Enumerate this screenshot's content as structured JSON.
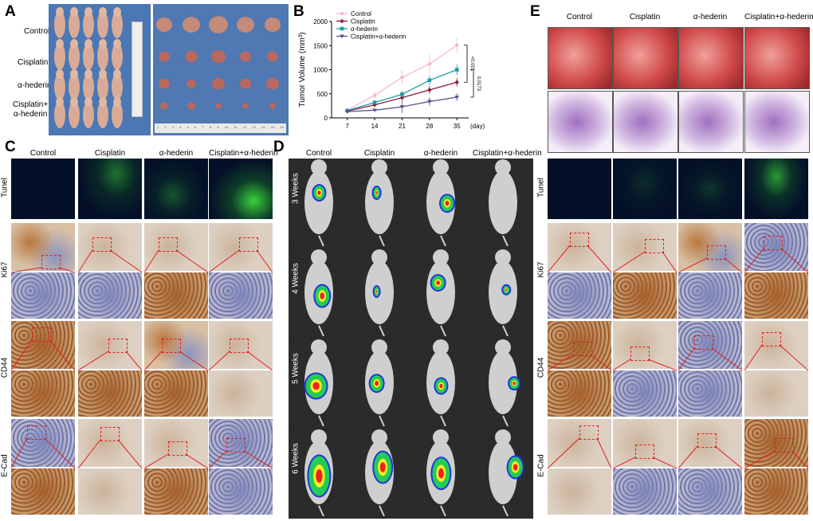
{
  "panels": {
    "a": "A",
    "b": "B",
    "c": "C",
    "d": "D",
    "e": "E"
  },
  "panelA": {
    "rows": [
      "Control",
      "Cisplatin",
      "α-hederin",
      "Cisplatin+\nα-hederin"
    ],
    "ruler_ticks": [
      "1",
      "2",
      "3",
      "4",
      "5",
      "6",
      "7",
      "8",
      "9",
      "10",
      "11",
      "12",
      "13",
      "14",
      "15",
      "16"
    ]
  },
  "chart_data": {
    "type": "line",
    "xlabel": "(day)",
    "ylabel": "Tumor Volume (mm³)",
    "x": [
      7,
      14,
      21,
      28,
      35
    ],
    "xlim": [
      3,
      38
    ],
    "ylim": [
      0,
      2000
    ],
    "yticks": [
      0,
      500,
      1000,
      1500,
      2000
    ],
    "legend": "top-left",
    "series": [
      {
        "name": "Control",
        "color": "#f4b8cf",
        "marker": "circle",
        "values": [
          160,
          470,
          840,
          1120,
          1510
        ],
        "err": [
          20,
          60,
          150,
          200,
          160
        ]
      },
      {
        "name": "Cisplatin",
        "color": "#8c1c3a",
        "marker": "diamond",
        "values": [
          140,
          270,
          420,
          580,
          740
        ],
        "err": [
          20,
          40,
          60,
          80,
          90
        ]
      },
      {
        "name": "α-hederin",
        "color": "#1f9aa8",
        "marker": "square",
        "values": [
          150,
          320,
          490,
          780,
          1000
        ],
        "err": [
          20,
          50,
          70,
          100,
          110
        ]
      },
      {
        "name": "Cisplatin+α-hederin",
        "color": "#55548f",
        "marker": "triangle-down",
        "values": [
          130,
          160,
          230,
          340,
          430
        ],
        "err": [
          15,
          30,
          130,
          90,
          80
        ]
      }
    ],
    "annotations": [
      "<0.001",
      "0.0173"
    ]
  },
  "panelC": {
    "cols": [
      "Control",
      "Cisplatin",
      "α-hederin",
      "Cisplatin+α-hederin"
    ],
    "rows": [
      "Tunel",
      "Ki67",
      "CD44",
      "E-Cad"
    ]
  },
  "panelD": {
    "cols": [
      "Control",
      "Cisplatin",
      "α-hederin",
      "Cisplatin+α-hederin"
    ],
    "rows": [
      "3 Weeks",
      "4 Weeks",
      "5 Weeks",
      "6 Weeks"
    ]
  },
  "panelE": {
    "cols": [
      "Control",
      "Cisplatin",
      "α-hederin",
      "Cisplatin+α-hederin"
    ],
    "rows": [
      "Tunel",
      "Ki67",
      "CD44",
      "E-Cad"
    ]
  },
  "colors": {
    "blue_bg": "#4a76b5",
    "tunel_dark": "#041028",
    "tunel_green": "#3ad23a",
    "ihc_brown": "#b9773f",
    "ihc_light": "#d8c0a4",
    "ihc_blue": "#8c94bf",
    "lung_red": "#d04a4a",
    "he_purple": "#a070c0",
    "biolum_bg": "#2b2b2b",
    "mouse": "#cfcfcf",
    "dash_red": "#e02020"
  }
}
